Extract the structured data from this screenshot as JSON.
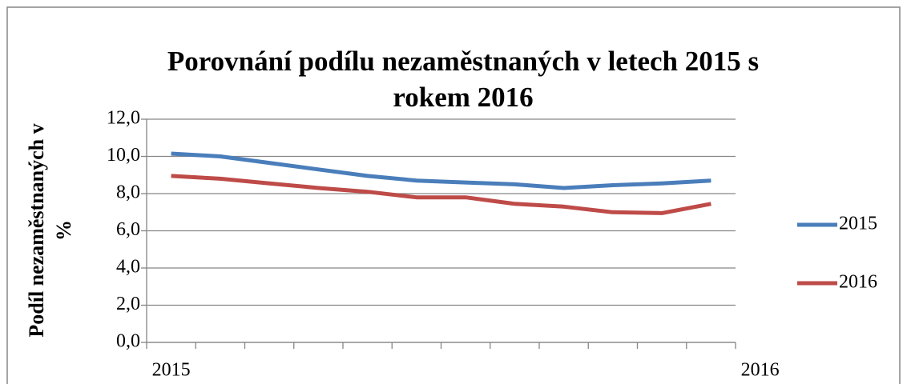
{
  "chart_data": {
    "type": "line",
    "title": [
      "Porovnání podílu nezaměstnaných v letech 2015 s",
      "rokem 2016"
    ],
    "y_label": [
      "Podíl nezaměstnaných v",
      "%"
    ],
    "categories": [
      "2015",
      null,
      null,
      null,
      null,
      null,
      null,
      null,
      null,
      null,
      null,
      null
    ],
    "x_end_label": "2016",
    "series": [
      {
        "name": "2015",
        "color": "#4a7ebb",
        "values": [
          10.15,
          10.0,
          9.65,
          9.3,
          8.95,
          8.7,
          8.6,
          8.5,
          8.3,
          8.45,
          8.55,
          8.7
        ]
      },
      {
        "name": "2016",
        "color": "#be4b48",
        "values": [
          8.95,
          8.8,
          8.55,
          8.3,
          8.1,
          7.8,
          7.8,
          7.45,
          7.3,
          7.0,
          6.95,
          7.45
        ]
      }
    ],
    "ylim": [
      0,
      12
    ],
    "yticks": [
      {
        "value": 0,
        "label": "0,0"
      },
      {
        "value": 2,
        "label": "2,0"
      },
      {
        "value": 4,
        "label": "4,0"
      },
      {
        "value": 6,
        "label": "6,0"
      },
      {
        "value": 8,
        "label": "8,0"
      },
      {
        "value": 10,
        "label": "10,0"
      },
      {
        "value": 12,
        "label": "12,0"
      }
    ],
    "grid": true,
    "legend": "right"
  }
}
